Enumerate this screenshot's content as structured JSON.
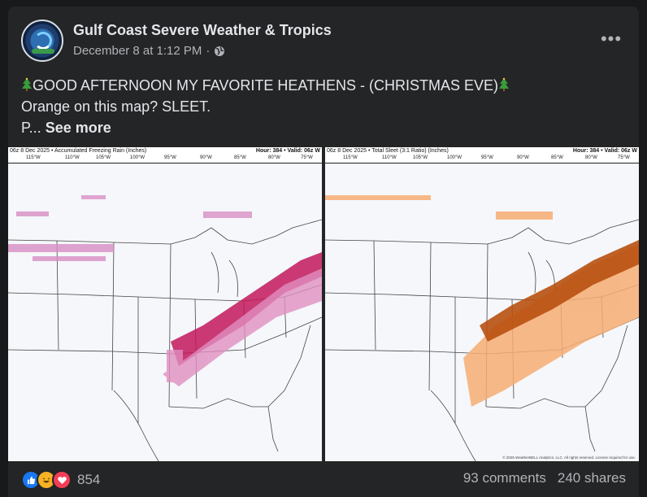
{
  "post": {
    "page_name": "Gulf Coast Severe Weather & Tropics",
    "timestamp": "December 8 at 1:12 PM",
    "separator": "·",
    "privacy_icon": "globe-icon",
    "more_label": "•••",
    "text_lines": [
      "GOOD AFTERNOON  MY FAVORITE HEATHENS - (CHRISTMAS EVE)",
      "Orange on this map? SLEET.",
      "P..."
    ],
    "see_more_label": "See more",
    "emoji_icon": "christmas-tree-icon"
  },
  "maps": [
    {
      "header": "06z 8 Dec 2025 • Accumulated Freezing Rain (Inches)",
      "hour_label": "Hour: 384 • Valid: 06z W",
      "longitudes": [
        "115°W",
        "110°W",
        "105°W",
        "100°W",
        "95°W",
        "90°W",
        "85°W",
        "80°W",
        "75°W"
      ],
      "accent": "#c2185b",
      "light": "#d98ec4"
    },
    {
      "header": "06z 8 Dec 2025 • Total Sleet (3:1 Ratio) (Inches)",
      "hour_label": "Hour: 384 • Valid: 06z W",
      "longitudes": [
        "115°W",
        "110°W",
        "105°W",
        "100°W",
        "95°W",
        "90°W",
        "85°W",
        "80°W",
        "75°W"
      ],
      "accent": "#b8500f",
      "light": "#f7ad72",
      "copyright": "© 2025 WeatherBELL Analytics, LLC. All rights reserved. License required for use."
    }
  ],
  "engagement": {
    "reaction_icons": [
      "like-icon",
      "haha-icon",
      "love-icon"
    ],
    "reaction_count": "854",
    "comments": "93 comments",
    "shares": "240 shares"
  }
}
